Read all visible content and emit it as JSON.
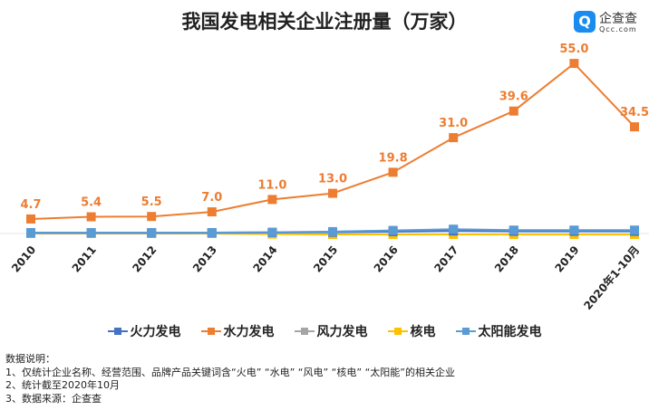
{
  "title": "我国发电相关企业注册量（万家）",
  "logo": {
    "name": "企查查",
    "domain": "Qcc.com"
  },
  "chart_data": {
    "type": "line",
    "title": "我国发电相关企业注册量（万家）",
    "categories": [
      "2010",
      "2011",
      "2012",
      "2013",
      "2014",
      "2015",
      "2016",
      "2017",
      "2018",
      "2019",
      "2020年1-10月"
    ],
    "ylim": [
      0,
      60
    ],
    "grid": false,
    "legend_position": "bottom",
    "series": [
      {
        "name": "火力发电",
        "color": "#4472c4",
        "values": [
          0.2,
          0.2,
          0.2,
          0.2,
          0.3,
          0.4,
          0.6,
          0.8,
          0.7,
          0.7,
          0.7
        ]
      },
      {
        "name": "水力发电",
        "color": "#ed7d31",
        "values": [
          4.7,
          5.4,
          5.5,
          7.0,
          11.0,
          13.0,
          19.8,
          31.0,
          39.6,
          55.0,
          34.5
        ],
        "labels": [
          "4.7",
          "5.4",
          "5.5",
          "7.0",
          "11.0",
          "13.0",
          "19.8",
          "31.0",
          "39.6",
          "55.0",
          "34.5"
        ]
      },
      {
        "name": "风力发电",
        "color": "#a5a5a5",
        "values": [
          0.2,
          0.2,
          0.2,
          0.3,
          0.4,
          0.6,
          0.9,
          1.2,
          1.0,
          0.9,
          0.9
        ]
      },
      {
        "name": "核电",
        "color": "#ffc000",
        "values": [
          0,
          0,
          0,
          0,
          -0.2,
          -0.3,
          -0.3,
          -0.3,
          -0.3,
          -0.3,
          -0.3
        ]
      },
      {
        "name": "太阳能发电",
        "color": "#5b9bd5",
        "values": [
          0.3,
          0.3,
          0.3,
          0.3,
          0.4,
          0.6,
          1.0,
          1.4,
          1.1,
          1.1,
          1.1
        ]
      }
    ]
  },
  "notes": [
    "数据说明：",
    "1、仅统计企业名称、经营范围、品牌产品关键词含“火电” “水电” “风电” “核电” “太阳能”的相关企业",
    "2、统计截至2020年10月",
    "3、数据来源：企查查"
  ]
}
